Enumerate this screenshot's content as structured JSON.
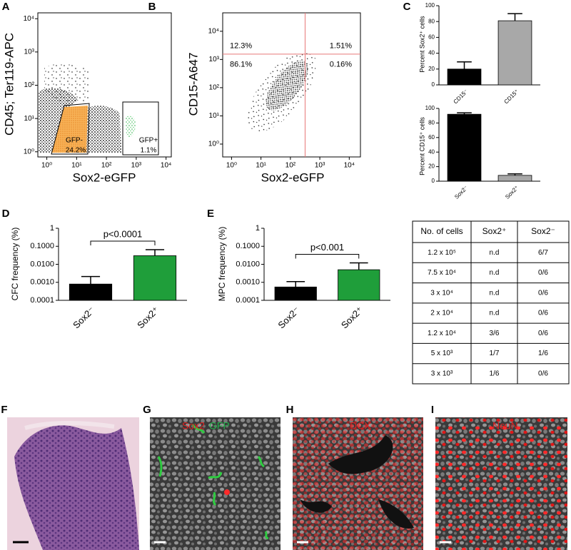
{
  "chart_data": [
    {
      "panel": "A",
      "type": "scatter",
      "log_x": true,
      "log_y": true,
      "xlabel": "Sox2-eGFP",
      "ylabel": "CD45; Ter119-APC",
      "xlim": [
        0.5,
        15000
      ],
      "ylim": [
        0.7,
        15000
      ],
      "xticks": [
        {
          "value": 1,
          "label": "10⁰"
        },
        {
          "value": 10,
          "label": "10¹"
        },
        {
          "value": 100,
          "label": "10²"
        },
        {
          "value": 1000,
          "label": "10³"
        },
        {
          "value": 10000,
          "label": "10⁴"
        }
      ],
      "yticks": [
        {
          "value": 1,
          "label": "10⁰"
        },
        {
          "value": 10,
          "label": "10¹"
        },
        {
          "value": 100,
          "label": "10²"
        },
        {
          "value": 1000,
          "label": "10³"
        },
        {
          "value": 10000,
          "label": "10⁴"
        }
      ],
      "gates": [
        {
          "name": "GFP-",
          "label": "24.2%"
        },
        {
          "name": "GFP+",
          "label": "1.1%"
        }
      ]
    },
    {
      "panel": "B",
      "type": "scatter",
      "log_x": true,
      "log_y": true,
      "xlabel": "Sox2-eGFP",
      "ylabel": "CD15-A647",
      "xlim": [
        0.5,
        24000
      ],
      "ylim": [
        0.35,
        45000
      ],
      "xticks": [
        {
          "value": 1,
          "label": "10⁰"
        },
        {
          "value": 10,
          "label": "10¹"
        },
        {
          "value": 100,
          "label": "10²"
        },
        {
          "value": 1000,
          "label": "10³"
        },
        {
          "value": 10000,
          "label": "10⁴"
        }
      ],
      "yticks": [
        {
          "value": 1,
          "label": "10⁰"
        },
        {
          "value": 10,
          "label": "10¹"
        },
        {
          "value": 100,
          "label": "10²"
        },
        {
          "value": 1000,
          "label": "10³"
        },
        {
          "value": 10000,
          "label": "10⁴"
        }
      ],
      "quadrant": {
        "x": 316,
        "y": 1550,
        "color": "#e87878"
      },
      "quadrant_labels": [
        "12.3%",
        "1.51%",
        "86.1%",
        "0.16%"
      ]
    },
    {
      "panel": "C",
      "type": "bar",
      "ylabel": "Percent Sox2⁺ cells",
      "categories": [
        "CD15⁻",
        "CD15⁺"
      ],
      "values": [
        20,
        81
      ],
      "errors": [
        9,
        9
      ],
      "colors": [
        "#000000",
        "#a8a8a8"
      ],
      "ylim": [
        0,
        100
      ],
      "yticks": [
        0,
        20,
        40,
        60,
        80,
        100
      ]
    },
    {
      "type": "bar",
      "ylabel": "Percent CD15⁺ cells",
      "categories": [
        "Sox2⁻",
        "Sox2⁺"
      ],
      "values": [
        92,
        8
      ],
      "errors": [
        2,
        2
      ],
      "colors": [
        "#000000",
        "#a8a8a8"
      ],
      "ylim": [
        0,
        100
      ],
      "yticks": [
        0,
        20,
        40,
        60,
        80,
        100
      ]
    },
    {
      "panel": "D",
      "type": "bar",
      "log_y": true,
      "ylabel": "CFC frequency (%)",
      "categories": [
        "Sox2⁻",
        "Sox2⁺"
      ],
      "values": [
        0.0008,
        0.03
      ],
      "errors": [
        0.0013,
        0.035
      ],
      "colors": [
        "#000000",
        "#1f9e3a"
      ],
      "ylim": [
        0.0001,
        1
      ],
      "yticks": [
        0.0001,
        {
          "value": 0.001,
          "label": "0.0010"
        },
        {
          "value": 0.01,
          "label": "0.0100"
        },
        {
          "value": 0.1,
          "label": "0.1000"
        },
        1
      ],
      "annotation": "p<0.0001"
    },
    {
      "panel": "E",
      "type": "bar",
      "log_y": true,
      "ylabel": "MPC frequency (%)",
      "categories": [
        "Sox2⁻",
        "Sox2⁺"
      ],
      "values": [
        0.00055,
        0.005
      ],
      "errors": [
        0.00055,
        0.007
      ],
      "colors": [
        "#000000",
        "#1f9e3a"
      ],
      "ylim": [
        0.0001,
        1
      ],
      "yticks": [
        0.0001,
        {
          "value": 0.001,
          "label": "0.0010"
        },
        {
          "value": 0.01,
          "label": "0.0100"
        },
        {
          "value": 0.1,
          "label": "0.1000"
        },
        1
      ],
      "annotation": "p<0.001"
    }
  ],
  "table": {
    "header": [
      "No. of cells",
      "Sox2⁺",
      "Sox2⁻"
    ],
    "rows": [
      [
        "1.2 x 10⁵",
        "n.d",
        "6/7"
      ],
      [
        "7.5 x 10⁴",
        "n.d",
        "0/6"
      ],
      [
        "3 x 10⁴",
        "n.d",
        "0/6"
      ],
      [
        "2 x 10⁴",
        "n.d",
        "0/6"
      ],
      [
        "1.2 x 10⁴",
        "3/6",
        "0/6"
      ],
      [
        "5 x 10³",
        "1/7",
        "1/6"
      ],
      [
        "3 x 10³",
        "1/6",
        "0/6"
      ]
    ]
  },
  "images": [
    {
      "panel": "F"
    },
    {
      "panel": "G",
      "labels": [
        {
          "text": "Sox2",
          "color": "#e02020"
        },
        {
          "text": "GFP",
          "color": "#22b04a"
        }
      ]
    },
    {
      "panel": "H",
      "labels": [
        {
          "text": "DCX",
          "color": "#e02020"
        }
      ]
    },
    {
      "panel": "I",
      "labels": [
        {
          "text": "NeuN",
          "color": "#e02020"
        }
      ]
    }
  ]
}
